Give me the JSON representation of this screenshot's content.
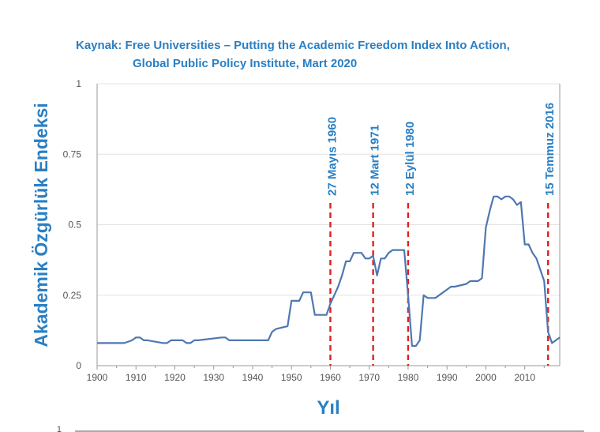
{
  "source": {
    "line1": "Kaynak: Free Universities – Putting the Academic Freedom Index Into Action,",
    "line2": "Global Public Policy Institute, Mart 2020"
  },
  "chart_data": {
    "type": "line",
    "xlabel": "Yıl",
    "ylabel": "Akademik Özgürlük Endeksi",
    "xlim": [
      1900,
      2019
    ],
    "ylim": [
      0,
      1
    ],
    "x_ticks": [
      "1900",
      "1910",
      "1920",
      "1930",
      "1940",
      "1950",
      "1960",
      "1970",
      "1980",
      "1990",
      "2000",
      "2010"
    ],
    "y_ticks": [
      "0",
      "0.25",
      "0.5",
      "0.75",
      "1"
    ],
    "colors": {
      "series": "#4f77b1",
      "events": "#e02020",
      "text": "#2a7fc3",
      "axis": "#9a9a9a"
    },
    "series": [
      {
        "x": [
          1900,
          1907,
          1909,
          1910,
          1911,
          1912,
          1913,
          1917,
          1918,
          1919,
          1920,
          1922,
          1923,
          1924,
          1925,
          1926,
          1932,
          1933,
          1934,
          1937,
          1944,
          1945,
          1946,
          1949,
          1950,
          1952,
          1953,
          1955,
          1956,
          1959,
          1960,
          1961,
          1962,
          1963,
          1964,
          1965,
          1966,
          1968,
          1969,
          1970,
          1971,
          1972,
          1973,
          1974,
          1975,
          1976,
          1979,
          1980,
          1981,
          1982,
          1983,
          1984,
          1985,
          1987,
          1988,
          1989,
          1990,
          1991,
          1992,
          1995,
          1996,
          1998,
          1999,
          2000,
          2001,
          2002,
          2003,
          2004,
          2005,
          2006,
          2007,
          2008,
          2009,
          2010,
          2011,
          2012,
          2013,
          2014,
          2015,
          2016,
          2017,
          2018,
          2019
        ],
        "y": [
          0.08,
          0.08,
          0.09,
          0.1,
          0.1,
          0.09,
          0.09,
          0.08,
          0.08,
          0.09,
          0.09,
          0.09,
          0.08,
          0.08,
          0.09,
          0.09,
          0.1,
          0.1,
          0.09,
          0.09,
          0.09,
          0.12,
          0.13,
          0.14,
          0.23,
          0.23,
          0.26,
          0.26,
          0.18,
          0.18,
          0.22,
          0.25,
          0.28,
          0.32,
          0.37,
          0.37,
          0.4,
          0.4,
          0.38,
          0.38,
          0.39,
          0.32,
          0.38,
          0.38,
          0.4,
          0.41,
          0.41,
          0.25,
          0.07,
          0.07,
          0.09,
          0.25,
          0.24,
          0.24,
          0.25,
          0.26,
          0.27,
          0.28,
          0.28,
          0.29,
          0.3,
          0.3,
          0.31,
          0.49,
          0.55,
          0.6,
          0.6,
          0.59,
          0.6,
          0.6,
          0.59,
          0.57,
          0.58,
          0.43,
          0.43,
          0.4,
          0.38,
          0.34,
          0.3,
          0.12,
          0.08,
          0.09,
          0.1
        ]
      }
    ],
    "events": [
      {
        "year": 1960,
        "label": "27 Mayıs 1960"
      },
      {
        "year": 1971,
        "label": "12 Mart 1971"
      },
      {
        "year": 1980,
        "label": "12 Eylül 1980"
      },
      {
        "year": 2016,
        "label": "15 Temmuz 2016"
      }
    ],
    "bottom_fragment": "1"
  }
}
